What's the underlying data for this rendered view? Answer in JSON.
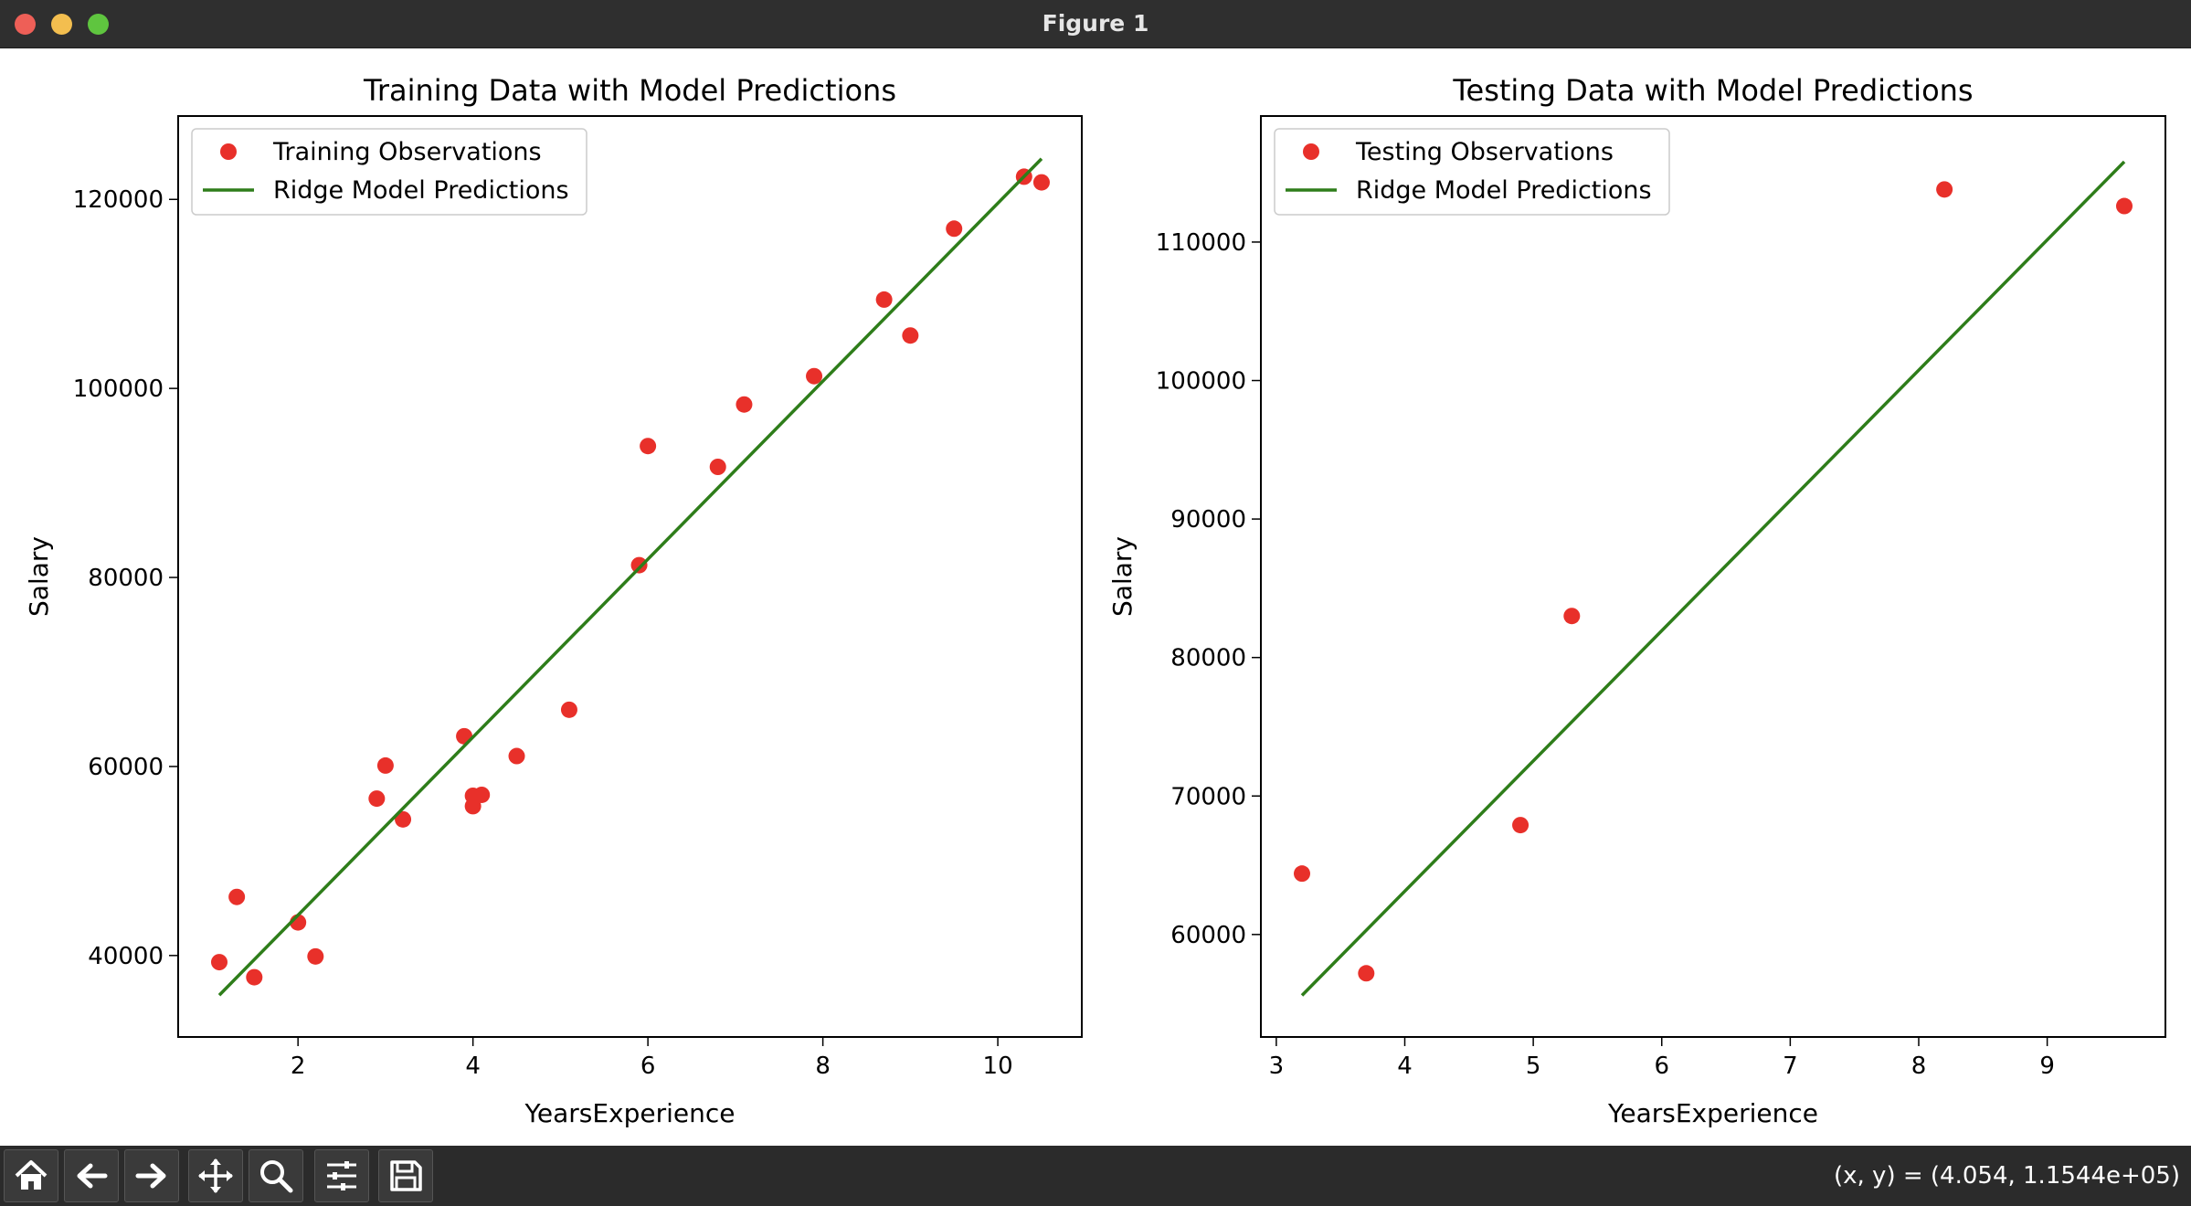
{
  "window": {
    "title": "Figure 1",
    "traffic_colors": {
      "close": "#ee5f57",
      "minimize": "#f3be4f",
      "zoom": "#5fc53f"
    }
  },
  "toolbar": {
    "icons": [
      "home-icon",
      "back-arrow-icon",
      "forward-arrow-icon",
      "pan-icon",
      "zoom-icon",
      "configure-subplots-icon",
      "save-icon"
    ],
    "coords_text": "(x, y) = (4.054, 1.1544e+05)"
  },
  "colors": {
    "points": "#e8302a",
    "line": "#2e7d1a",
    "axes": "#000000"
  },
  "chart_data": [
    {
      "type": "scatter",
      "title": "Training Data with Model Predictions",
      "xlabel": "YearsExperience",
      "ylabel": "Salary",
      "xlim": [
        0.63,
        10.96
      ],
      "ylim": [
        31380,
        128820
      ],
      "xticks": [
        2,
        4,
        6,
        8,
        10
      ],
      "yticks": [
        40000,
        60000,
        80000,
        100000,
        120000
      ],
      "legend": {
        "placement": "top-left",
        "entries": [
          "Training Observations",
          "Ridge Model Predictions"
        ]
      },
      "series": [
        {
          "name": "Training Observations",
          "kind": "scatter",
          "points": [
            [
              1.1,
              39300
            ],
            [
              1.3,
              46200
            ],
            [
              1.5,
              37700
            ],
            [
              2.0,
              43500
            ],
            [
              2.2,
              39900
            ],
            [
              2.9,
              56600
            ],
            [
              3.0,
              60100
            ],
            [
              3.2,
              54400
            ],
            [
              3.9,
              63200
            ],
            [
              4.0,
              55800
            ],
            [
              4.0,
              56900
            ],
            [
              4.1,
              57000
            ],
            [
              4.5,
              61100
            ],
            [
              5.1,
              66000
            ],
            [
              5.9,
              81300
            ],
            [
              6.0,
              93900
            ],
            [
              6.8,
              91700
            ],
            [
              7.1,
              98300
            ],
            [
              7.9,
              101300
            ],
            [
              8.7,
              109400
            ],
            [
              9.0,
              105600
            ],
            [
              9.5,
              116900
            ],
            [
              10.3,
              122400
            ],
            [
              10.5,
              121800
            ]
          ]
        },
        {
          "name": "Ridge Model Predictions",
          "kind": "line",
          "points": [
            [
              1.1,
              35800
            ],
            [
              10.5,
              124300
            ]
          ]
        }
      ]
    },
    {
      "type": "scatter",
      "title": "Testing Data with Model Predictions",
      "xlabel": "YearsExperience",
      "ylabel": "Salary",
      "xlim": [
        2.88,
        9.92
      ],
      "ylim": [
        52600,
        119100
      ],
      "xticks": [
        3,
        4,
        5,
        6,
        7,
        8,
        9
      ],
      "yticks": [
        60000,
        70000,
        80000,
        90000,
        100000,
        110000
      ],
      "legend": {
        "placement": "top-left",
        "entries": [
          "Testing Observations",
          "Ridge Model Predictions"
        ]
      },
      "series": [
        {
          "name": "Testing Observations",
          "kind": "scatter",
          "points": [
            [
              3.2,
              64400
            ],
            [
              3.7,
              57200
            ],
            [
              4.9,
              67900
            ],
            [
              5.3,
              83000
            ],
            [
              8.2,
              113800
            ],
            [
              9.6,
              112600
            ]
          ]
        },
        {
          "name": "Ridge Model Predictions",
          "kind": "line",
          "points": [
            [
              3.2,
              55600
            ],
            [
              9.6,
              115800
            ]
          ]
        }
      ]
    }
  ]
}
